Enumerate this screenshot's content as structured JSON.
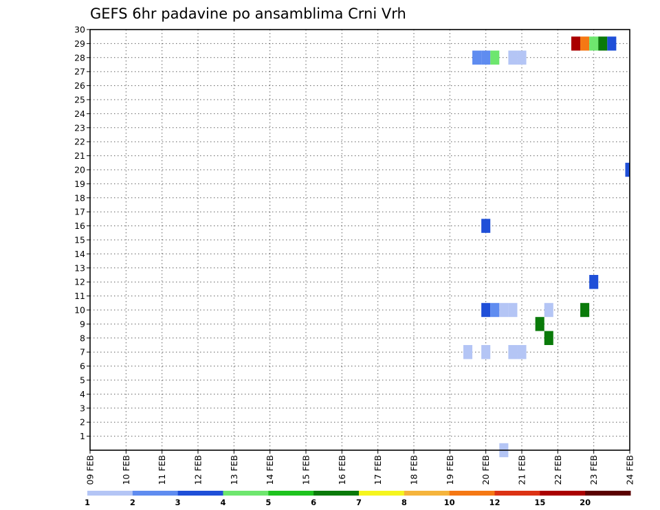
{
  "chart_data": {
    "type": "heatmap",
    "title": "GEFS 6hr padavine po ansamblima Crni Vrh",
    "xlabel": "",
    "ylabel": "",
    "x_tick_labels": [
      "09 FEB",
      "10 FEB",
      "11 FEB",
      "12 FEB",
      "13 FEB",
      "14 FEB",
      "15 FEB",
      "16 FEB",
      "17 FEB",
      "18 FEB",
      "19 FEB",
      "20 FEB",
      "21 FEB",
      "22 FEB",
      "23 FEB",
      "24 FEB"
    ],
    "x_range_days": [
      0,
      15
    ],
    "y_tick_labels": [
      "1",
      "2",
      "3",
      "4",
      "5",
      "6",
      "7",
      "8",
      "9",
      "10",
      "11",
      "12",
      "13",
      "14",
      "15",
      "16",
      "17",
      "18",
      "19",
      "20",
      "21",
      "22",
      "23",
      "24",
      "25",
      "26",
      "27",
      "28",
      "29",
      "30"
    ],
    "y_range": [
      0,
      30
    ],
    "grid": true,
    "colorbar": {
      "labels": [
        "1",
        "2",
        "3",
        "4",
        "5",
        "6",
        "7",
        "8",
        "10",
        "12",
        "15",
        "20"
      ],
      "colors": [
        "#b4c5f5",
        "#5f8cf0",
        "#1f4fd8",
        "#6ee66e",
        "#1ec31e",
        "#0a7a0a",
        "#f5f51e",
        "#f5b43c",
        "#f57814",
        "#dc3214",
        "#aa0000",
        "#5a0000"
      ]
    },
    "cells": [
      {
        "t": 10.75,
        "m": 28,
        "v": 2
      },
      {
        "t": 11.0,
        "m": 28,
        "v": 2
      },
      {
        "t": 11.25,
        "m": 28,
        "v": 4
      },
      {
        "t": 11.75,
        "m": 28,
        "v": 1
      },
      {
        "t": 12.0,
        "m": 28,
        "v": 1
      },
      {
        "t": 13.5,
        "m": 29,
        "v": 15
      },
      {
        "t": 13.75,
        "m": 29,
        "v": 10
      },
      {
        "t": 14.0,
        "m": 29,
        "v": 4
      },
      {
        "t": 14.25,
        "m": 29,
        "v": 6
      },
      {
        "t": 14.5,
        "m": 29,
        "v": 3
      },
      {
        "t": 15.0,
        "m": 20,
        "v": 3
      },
      {
        "t": 11.0,
        "m": 16,
        "v": 3
      },
      {
        "t": 14.0,
        "m": 12,
        "v": 3
      },
      {
        "t": 11.0,
        "m": 10,
        "v": 3
      },
      {
        "t": 11.25,
        "m": 10,
        "v": 2
      },
      {
        "t": 11.5,
        "m": 10,
        "v": 1
      },
      {
        "t": 11.75,
        "m": 10,
        "v": 1
      },
      {
        "t": 12.75,
        "m": 10,
        "v": 1
      },
      {
        "t": 13.75,
        "m": 10,
        "v": 6
      },
      {
        "t": 12.5,
        "m": 9,
        "v": 6
      },
      {
        "t": 12.75,
        "m": 8,
        "v": 6
      },
      {
        "t": 10.5,
        "m": 7,
        "v": 1
      },
      {
        "t": 11.0,
        "m": 7,
        "v": 1
      },
      {
        "t": 11.75,
        "m": 7,
        "v": 1
      },
      {
        "t": 12.0,
        "m": 7,
        "v": 1
      },
      {
        "t": 11.5,
        "m": 0,
        "v": 1
      }
    ]
  }
}
